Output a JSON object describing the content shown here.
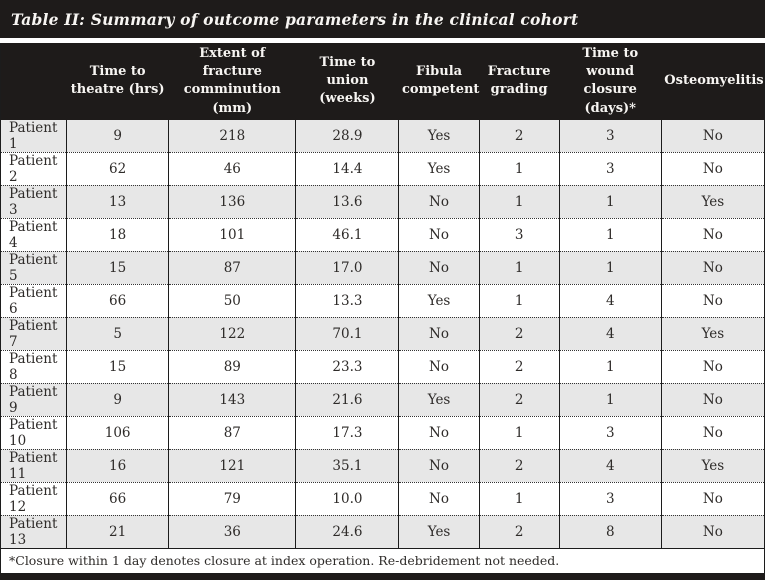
{
  "title": "Table II: Summary of outcome parameters in the clinical cohort",
  "table": {
    "columns": [
      "",
      "Time to\ntheatre (hrs)",
      "Extent of fracture\ncomminution (mm)",
      "Time to union\n(weeks)",
      "Fibula\ncompetent",
      "Fracture\ngrading",
      "Time to wound\nclosure (days)*",
      "Osteomyelitis"
    ],
    "rows": [
      {
        "label": "Patient 1",
        "values": [
          "9",
          "218",
          "28.9",
          "Yes",
          "2",
          "3",
          "No"
        ]
      },
      {
        "label": "Patient 2",
        "values": [
          "62",
          "46",
          "14.4",
          "Yes",
          "1",
          "3",
          "No"
        ]
      },
      {
        "label": "Patient 3",
        "values": [
          "13",
          "136",
          "13.6",
          "No",
          "1",
          "1",
          "Yes"
        ]
      },
      {
        "label": "Patient 4",
        "values": [
          "18",
          "101",
          "46.1",
          "No",
          "3",
          "1",
          "No"
        ]
      },
      {
        "label": "Patient 5",
        "values": [
          "15",
          "87",
          "17.0",
          "No",
          "1",
          "1",
          "No"
        ]
      },
      {
        "label": "Patient 6",
        "values": [
          "66",
          "50",
          "13.3",
          "Yes",
          "1",
          "4",
          "No"
        ]
      },
      {
        "label": "Patient 7",
        "values": [
          "5",
          "122",
          "70.1",
          "No",
          "2",
          "4",
          "Yes"
        ]
      },
      {
        "label": "Patient 8",
        "values": [
          "15",
          "89",
          "23.3",
          "No",
          "2",
          "1",
          "No"
        ]
      },
      {
        "label": "Patient 9",
        "values": [
          "9",
          "143",
          "21.6",
          "Yes",
          "2",
          "1",
          "No"
        ]
      },
      {
        "label": "Patient 10",
        "values": [
          "106",
          "87",
          "17.3",
          "No",
          "1",
          "3",
          "No"
        ]
      },
      {
        "label": "Patient 11",
        "values": [
          "16",
          "121",
          "35.1",
          "No",
          "2",
          "4",
          "Yes"
        ]
      },
      {
        "label": "Patient 12",
        "values": [
          "66",
          "79",
          "10.0",
          "No",
          "1",
          "3",
          "No"
        ]
      },
      {
        "label": "Patient 13",
        "values": [
          "21",
          "36",
          "24.6",
          "Yes",
          "2",
          "8",
          "No"
        ]
      }
    ]
  },
  "footnote": "*Closure within 1 day denotes closure at index operation. Re-debridement not needed.",
  "colors": {
    "bar_black": "#1e1b1a",
    "stripe_gray": "#e7e7e7",
    "text_dark": "#2e2b29",
    "header_text": "#f7f5f2"
  }
}
